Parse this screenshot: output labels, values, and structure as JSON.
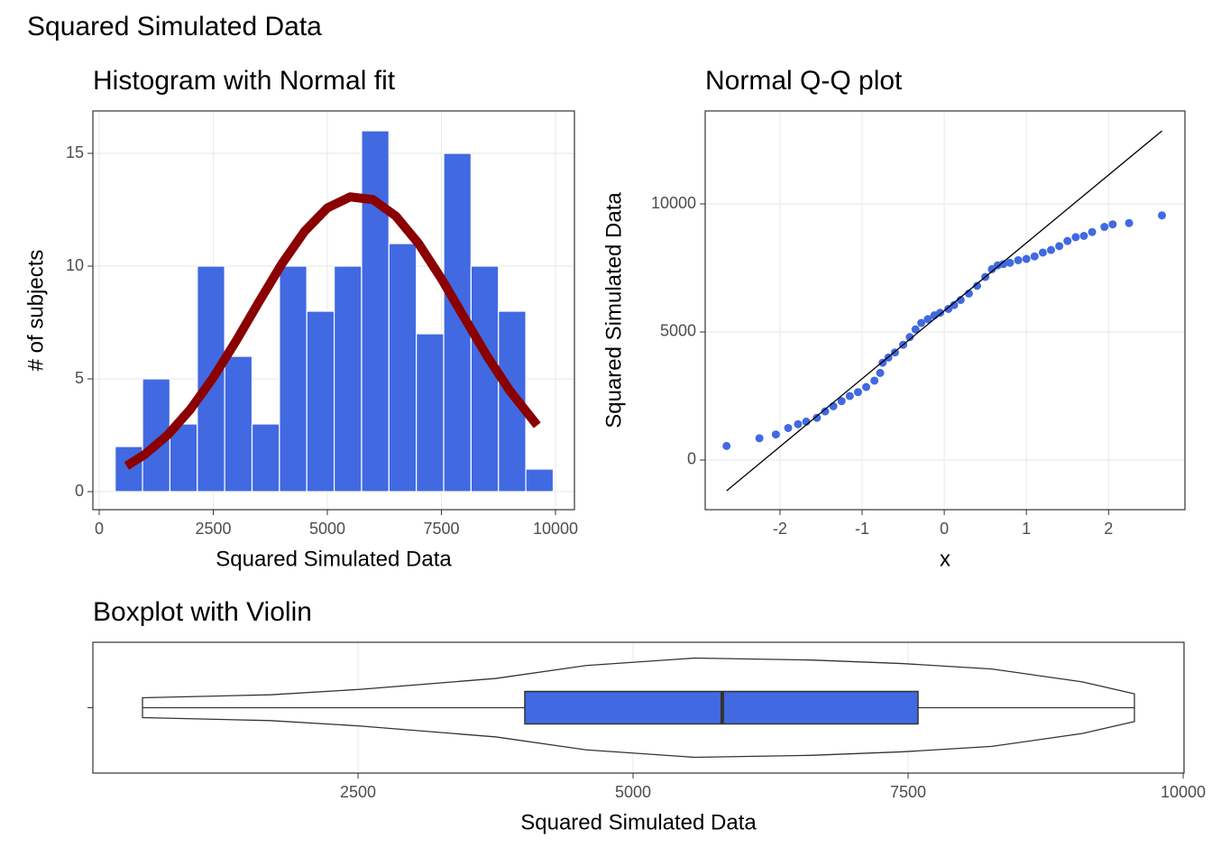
{
  "title": "Squared Simulated Data",
  "chart_data": [
    {
      "type": "histogram",
      "title": "Histogram with Normal fit",
      "x_label": "Squared Simulated Data",
      "y_label": "# of subjects",
      "bins": [
        350,
        950,
        1550,
        2150,
        2750,
        3350,
        3950,
        4550,
        5150,
        5750,
        6350,
        6950,
        7550,
        8150,
        8750,
        9350,
        9950
      ],
      "values": [
        2,
        5,
        3,
        10,
        6,
        3,
        10,
        8,
        10,
        16,
        11,
        7,
        15,
        10,
        8,
        1
      ],
      "color": "#4169e1",
      "curve": {
        "x": [
          600,
          1000,
          1500,
          2000,
          2500,
          3000,
          3500,
          4000,
          4500,
          5000,
          5500,
          6000,
          6500,
          7000,
          7500,
          8000,
          8500,
          9000,
          9600
        ],
        "values": [
          1.14,
          1.65,
          2.51,
          3.65,
          5.06,
          6.68,
          8.41,
          10.09,
          11.54,
          12.58,
          13.07,
          12.95,
          12.22,
          11.0,
          9.44,
          7.72,
          6.01,
          4.47,
          2.94
        ],
        "color": "#8b0000"
      },
      "xlim": [
        -138,
        10415
      ],
      "xticks": [
        0,
        2500,
        5000,
        7500,
        10000
      ],
      "ylim": [
        -0.8,
        16.88
      ],
      "yticks": [
        0,
        5,
        10,
        15
      ],
      "grid": true
    },
    {
      "type": "scatter",
      "title": "Normal Q-Q plot",
      "x_label": "x",
      "y_label": "Squared Simulated Data",
      "x": [
        -2.65,
        -2.25,
        -2.05,
        -1.9,
        -1.78,
        -1.68,
        -1.55,
        -1.45,
        -1.35,
        -1.25,
        -1.15,
        -1.05,
        -0.95,
        -0.85,
        -0.78,
        -0.75,
        -0.68,
        -0.6,
        -0.5,
        -0.42,
        -0.35,
        -0.28,
        -0.2,
        -0.12,
        -0.05,
        0.05,
        0.12,
        0.2,
        0.3,
        0.4,
        0.5,
        0.58,
        0.65,
        0.72,
        0.8,
        0.9,
        1.0,
        1.1,
        1.2,
        1.3,
        1.4,
        1.5,
        1.6,
        1.7,
        1.8,
        1.95,
        2.05,
        2.25,
        2.65
      ],
      "values": [
        550,
        850,
        1000,
        1250,
        1400,
        1500,
        1650,
        1900,
        2100,
        2300,
        2500,
        2650,
        2850,
        3100,
        3400,
        3800,
        4000,
        4200,
        4500,
        4800,
        5100,
        5350,
        5500,
        5650,
        5750,
        5900,
        6050,
        6250,
        6500,
        6800,
        7150,
        7450,
        7600,
        7650,
        7700,
        7800,
        7850,
        7950,
        8100,
        8200,
        8350,
        8550,
        8700,
        8750,
        8900,
        9100,
        9200,
        9250,
        9550
      ],
      "color": "#4169e1",
      "line": {
        "x": [
          -2.65,
          2.65
        ],
        "values": [
          -1200,
          12850
        ],
        "color": "#000000"
      },
      "xlim": [
        -2.91,
        2.93
      ],
      "xticks": [
        -2,
        -1,
        0,
        1,
        2
      ],
      "ylim": [
        -1937,
        13627
      ],
      "yticks": [
        0,
        5000,
        10000
      ],
      "grid": true
    },
    {
      "type": "boxplot",
      "title": "Boxplot with Violin",
      "x_label": "Squared Simulated Data",
      "box": {
        "min": 541,
        "q1": 4016,
        "median": 5811,
        "q3": 7590,
        "max": 9557
      },
      "color": "#4169e1",
      "violin": {
        "x": [
          541,
          1705,
          2525,
          3754,
          4574,
          5557,
          6623,
          7443,
          8262,
          9082,
          9557
        ],
        "width": [
          0.2,
          0.26,
          0.37,
          0.59,
          0.85,
          1,
          0.96,
          0.89,
          0.78,
          0.52,
          0.28
        ]
      },
      "xlim": [
        90,
        10008
      ],
      "xticks": [
        2500,
        5000,
        7500,
        10000
      ],
      "grid": true
    }
  ]
}
